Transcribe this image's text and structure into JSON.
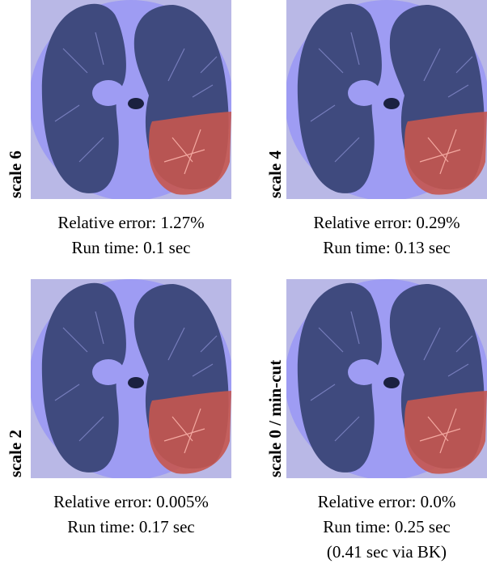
{
  "panels": [
    {
      "label": "scale 6",
      "caption": [
        "Relative error: 1.27%",
        "Run time: 0.1 sec"
      ]
    },
    {
      "label": "scale 4",
      "caption": [
        "Relative error: 0.29%",
        "Run time: 0.13 sec"
      ]
    },
    {
      "label": "scale 2",
      "caption": [
        "Relative error: 0.005%",
        "Run time: 0.17 sec"
      ]
    },
    {
      "label": "scale 0 / min-cut",
      "caption": [
        "Relative error: 0.0%",
        "Run time: 0.25 sec",
        "(0.41 sec via BK)"
      ]
    }
  ]
}
